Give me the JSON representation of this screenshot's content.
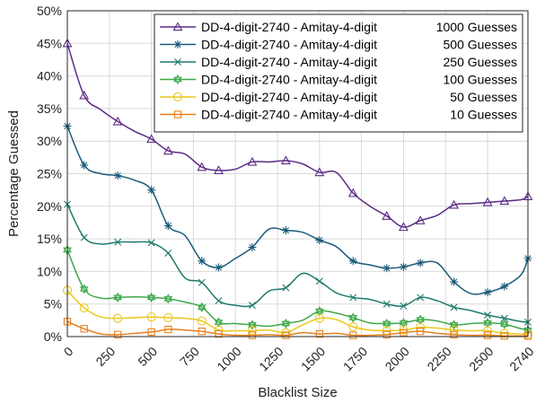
{
  "chart_data": {
    "type": "line",
    "xlabel": "Blacklist Size",
    "ylabel": "Percentage Guessed",
    "xlim": [
      0,
      2740
    ],
    "ylim": [
      0,
      50
    ],
    "x_ticks": [
      0,
      250,
      500,
      750,
      1000,
      1250,
      1500,
      1750,
      2000,
      2250,
      2500,
      2740
    ],
    "x_tick_labels": [
      "0",
      "250",
      "500",
      "750",
      "1000",
      "1250",
      "1500",
      "1750",
      "2000",
      "2250",
      "2500",
      "2740"
    ],
    "y_ticks": [
      0,
      5,
      10,
      15,
      20,
      25,
      30,
      35,
      40,
      45,
      50
    ],
    "y_tick_labels": [
      "0%",
      "5%",
      "10%",
      "15%",
      "20%",
      "25%",
      "30%",
      "35%",
      "40%",
      "45%",
      "50%"
    ],
    "grid": true,
    "legend_position": "top-right",
    "x": [
      0,
      100,
      200,
      300,
      400,
      500,
      600,
      700,
      800,
      900,
      1000,
      1100,
      1200,
      1300,
      1400,
      1500,
      1600,
      1700,
      1800,
      1900,
      2000,
      2100,
      2200,
      2300,
      2400,
      2500,
      2600,
      2700,
      2740
    ],
    "series": [
      {
        "name": "DD-4-digit-2740 - Amitay-4-digit",
        "guesses": "1000 Guesses",
        "color": "#5b2a86",
        "marker": "triangle",
        "values": [
          45.0,
          37.0,
          34.8,
          33.0,
          31.5,
          30.3,
          28.5,
          28.0,
          26.0,
          25.5,
          25.7,
          26.8,
          26.8,
          27.0,
          26.5,
          25.2,
          25.2,
          22.0,
          20.0,
          18.5,
          16.8,
          17.8,
          18.6,
          20.2,
          20.4,
          20.6,
          20.8,
          21.0,
          21.5
        ]
      },
      {
        "name": "DD-4-digit-2740 - Amitay-4-digit",
        "guesses": "500 Guesses",
        "color": "#1b5a7a",
        "marker": "asterisk",
        "values": [
          32.3,
          26.3,
          25.0,
          24.7,
          24.0,
          22.5,
          17.0,
          15.5,
          11.6,
          10.6,
          12.0,
          13.7,
          16.5,
          16.3,
          16.0,
          14.8,
          13.8,
          11.6,
          11.0,
          10.5,
          10.7,
          11.3,
          11.3,
          8.4,
          6.6,
          6.8,
          7.7,
          9.5,
          12.0
        ]
      },
      {
        "name": "DD-4-digit-2740 - Amitay-4-digit",
        "guesses": "250 Guesses",
        "color": "#1f7a6b",
        "marker": "x",
        "values": [
          20.3,
          15.2,
          14.2,
          14.5,
          14.5,
          14.4,
          12.8,
          9.0,
          8.3,
          5.5,
          4.8,
          4.8,
          7.0,
          7.5,
          9.7,
          8.5,
          6.7,
          6.0,
          5.7,
          5.0,
          4.7,
          6.0,
          5.5,
          4.5,
          4.0,
          3.3,
          2.8,
          2.3,
          2.2
        ]
      },
      {
        "name": "DD-4-digit-2740 - Amitay-4-digit",
        "guesses": "100 Guesses",
        "color": "#3fa84a",
        "marker": "hexagram",
        "values": [
          13.3,
          7.3,
          5.9,
          6.0,
          6.1,
          6.0,
          5.8,
          5.3,
          4.5,
          2.2,
          2.0,
          1.8,
          1.6,
          2.0,
          2.5,
          3.9,
          3.6,
          2.9,
          2.1,
          2.0,
          2.1,
          2.6,
          2.4,
          1.8,
          2.0,
          2.1,
          1.9,
          1.2,
          1.0
        ]
      },
      {
        "name": "DD-4-digit-2740 - Amitay-4-digit",
        "guesses": "50 Guesses",
        "color": "#ebc81c",
        "marker": "circle",
        "values": [
          7.1,
          4.4,
          3.0,
          2.8,
          2.9,
          3.0,
          2.9,
          2.8,
          2.4,
          1.0,
          0.9,
          0.9,
          1.0,
          0.6,
          1.8,
          2.8,
          2.6,
          1.5,
          1.0,
          0.9,
          1.0,
          1.4,
          1.3,
          1.0,
          0.9,
          0.9,
          0.5,
          0.4,
          0.3
        ]
      },
      {
        "name": "DD-4-digit-2740 - Amitay-4-digit",
        "guesses": "10 Guesses",
        "color": "#e6801c",
        "marker": "square",
        "values": [
          2.3,
          1.2,
          0.4,
          0.3,
          0.5,
          0.7,
          1.1,
          1.0,
          0.8,
          0.4,
          0.2,
          0.2,
          0.3,
          0.2,
          0.6,
          0.4,
          0.5,
          0.2,
          0.2,
          0.3,
          0.6,
          0.8,
          0.5,
          0.3,
          0.2,
          0.2,
          0.1,
          0.1,
          0.1
        ]
      }
    ]
  }
}
